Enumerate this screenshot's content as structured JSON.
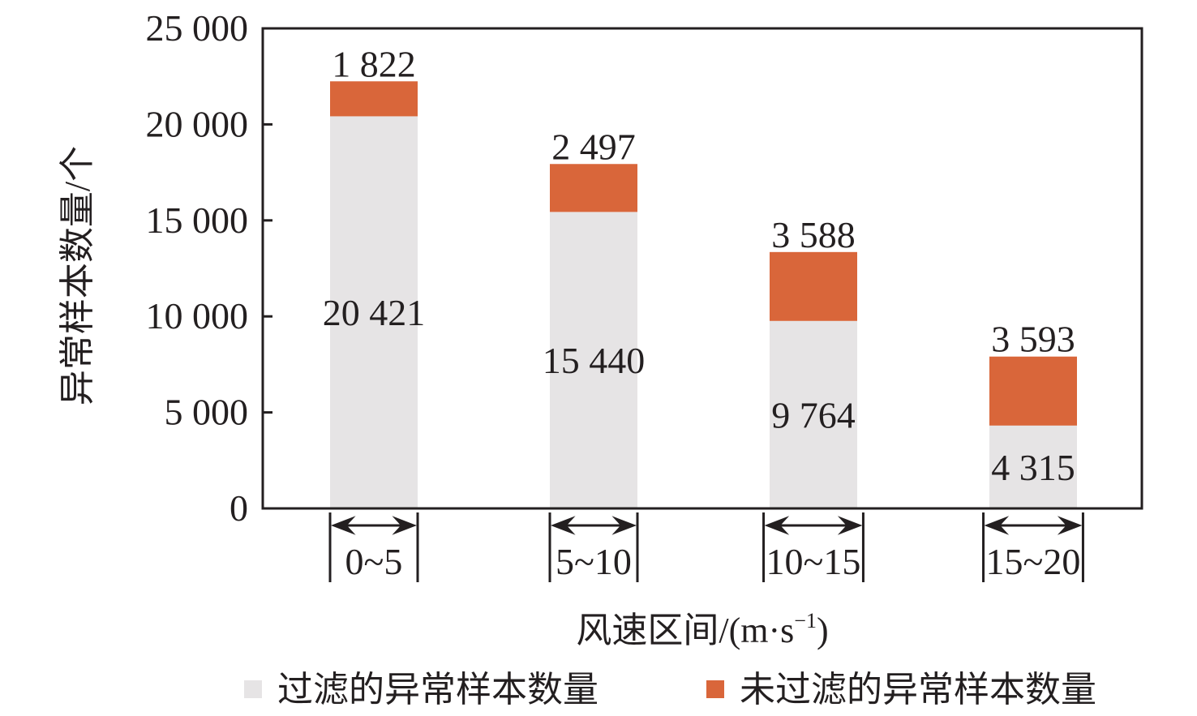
{
  "chart_data": {
    "type": "bar",
    "stacked": true,
    "categories": [
      "0~5",
      "5~10",
      "10~15",
      "15~20"
    ],
    "series": [
      {
        "name": "过滤的异常样本数量",
        "values": [
          20421,
          15440,
          9764,
          4315
        ],
        "color": "#e6e4e5"
      },
      {
        "name": "未过滤的异常样本数量",
        "values": [
          1822,
          2497,
          3588,
          3593
        ],
        "color": "#d9663a"
      }
    ],
    "value_labels": [
      [
        "20 421",
        "15 440",
        "9 764",
        "4 315"
      ],
      [
        "1 822",
        "2 497",
        "3 588",
        "3 593"
      ]
    ],
    "ylabel": "异常样本数量/个",
    "xlabel": {
      "base": "风速区间/(m·s",
      "sup": "−1",
      "close": ")"
    },
    "ylim": [
      0,
      25000
    ],
    "yticks": [
      0,
      5000,
      10000,
      15000,
      20000,
      25000
    ],
    "ytick_labels": [
      "0",
      "5 000",
      "10 000",
      "15 000",
      "20 000",
      "25 000"
    ],
    "grid": false,
    "legend_position": "bottom"
  }
}
